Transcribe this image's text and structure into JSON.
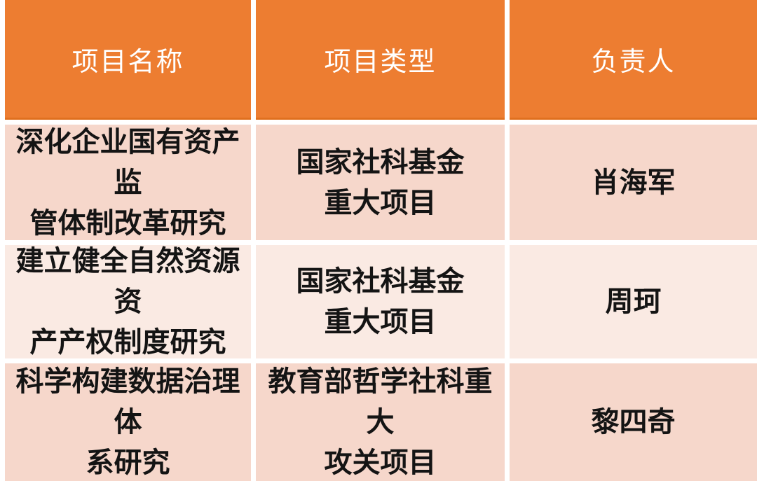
{
  "table": {
    "headers": [
      "项目名称",
      "项目类型",
      "负责人"
    ],
    "rows": [
      {
        "name": "深化企业国有资产监\n管体制改革研究",
        "type": "国家社科基金\n重大项目",
        "leader": "肖海军"
      },
      {
        "name": "建立健全自然资源资\n产产权制度研究",
        "type": "国家社科基金\n重大项目",
        "leader": "周珂"
      },
      {
        "name": "科学构建数据治理体\n系研究",
        "type": "教育部哲学社科重大\n攻关项目",
        "leader": "黎四奇"
      }
    ]
  },
  "colors": {
    "header_bg": "#ED7D31",
    "header_border_bottom": "#E0701F",
    "header_text": "#FFFFFF",
    "row_odd_bg": "#F6D7CB",
    "row_even_bg": "#FAEAE3",
    "body_text": "#141414",
    "gutter": "#FFFFFF"
  }
}
